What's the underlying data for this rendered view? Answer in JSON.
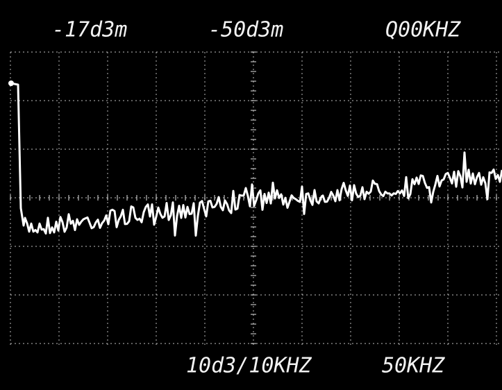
{
  "readout": {
    "reference_level": "-17d3m",
    "marker_level": "-50d3m",
    "center_frequency": "Q00KHZ",
    "scale": "10d3/10KHZ",
    "span": "50KHZ"
  }
}
